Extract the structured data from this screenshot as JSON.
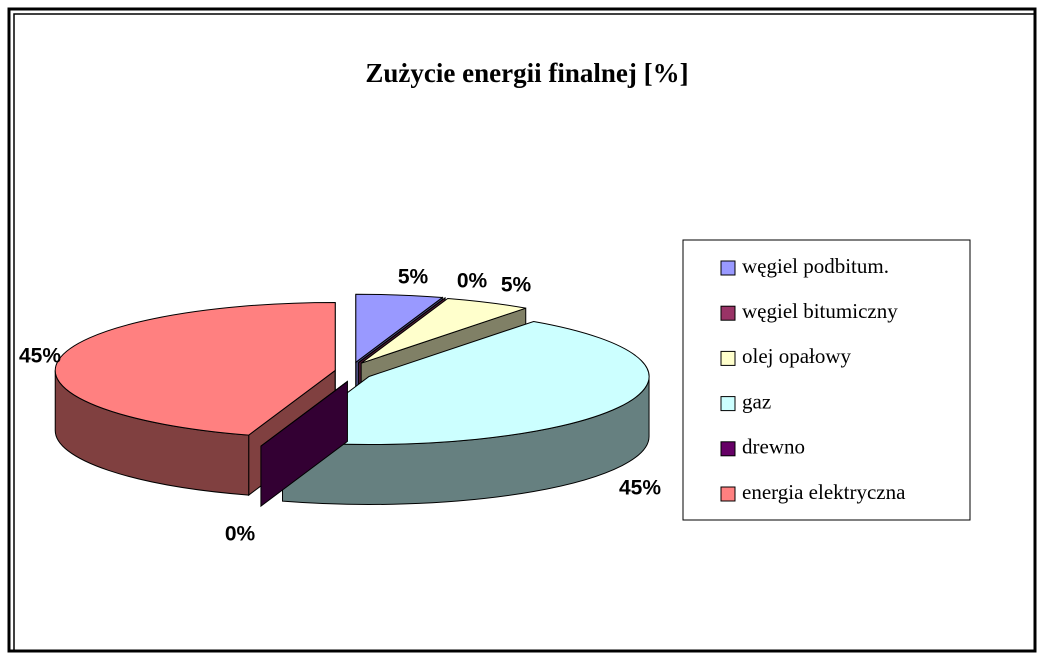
{
  "chart_data": {
    "type": "pie3d",
    "title": "Zużycie energii finalnej [%]",
    "categories": [
      "węgiel podbitum.",
      "węgiel bitumiczny",
      "olej opałowy",
      "gaz",
      "drewno",
      "energia elektryczna"
    ],
    "values": [
      5,
      0,
      5,
      45,
      0,
      45
    ],
    "value_labels": [
      "5%",
      "0%",
      "5%",
      "45%",
      "0%",
      "45%"
    ],
    "colors": [
      "#9999ff",
      "#993366",
      "#ffffcc",
      "#ccffff",
      "#660066",
      "#ff8080"
    ],
    "legend": "right"
  }
}
